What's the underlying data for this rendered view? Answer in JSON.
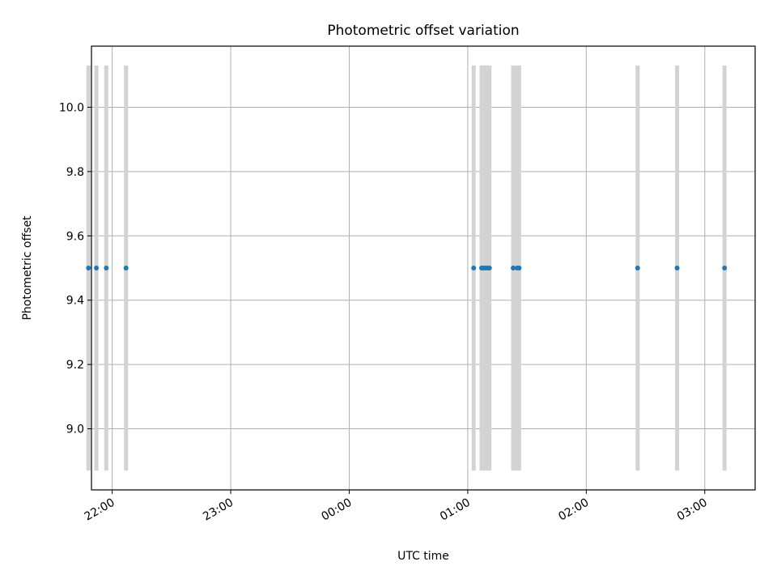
{
  "chart_data": {
    "type": "scatter",
    "title": "Photometric offset variation",
    "xlabel": "UTC time",
    "ylabel": "Photometric offset",
    "x_ticks": [
      "22:00",
      "23:00",
      "00:00",
      "01:00",
      "02:00",
      "03:00"
    ],
    "y_ticks": [
      "9.0",
      "9.2",
      "9.4",
      "9.6",
      "9.8",
      "10.0"
    ],
    "x_range": [
      "21:50",
      "03:25"
    ],
    "ylim": [
      8.81,
      10.19
    ],
    "grid": true,
    "points": {
      "x": [
        "21:48",
        "21:52",
        "21:57",
        "22:07",
        "01:03",
        "01:07",
        "01:08",
        "01:09",
        "01:10",
        "01:11",
        "01:23",
        "01:25",
        "01:26",
        "02:26",
        "02:46",
        "03:10"
      ],
      "y": [
        9.5,
        9.5,
        9.5,
        9.5,
        9.5,
        9.5,
        9.5,
        9.5,
        9.5,
        9.5,
        9.5,
        9.5,
        9.5,
        9.5,
        9.5,
        9.5
      ]
    },
    "error_bars": {
      "color": "#d3d3d3",
      "lower": 8.87,
      "upper": 10.13,
      "x": [
        "21:48",
        "21:52",
        "21:57",
        "22:07",
        "01:03",
        "01:07",
        "01:08",
        "01:09",
        "01:10",
        "01:11",
        "01:23",
        "01:25",
        "01:26",
        "02:26",
        "02:46",
        "03:10"
      ]
    },
    "colors": {
      "points": "#1f77b4",
      "grid": "#b0b0b0",
      "axes": "#000000"
    }
  }
}
